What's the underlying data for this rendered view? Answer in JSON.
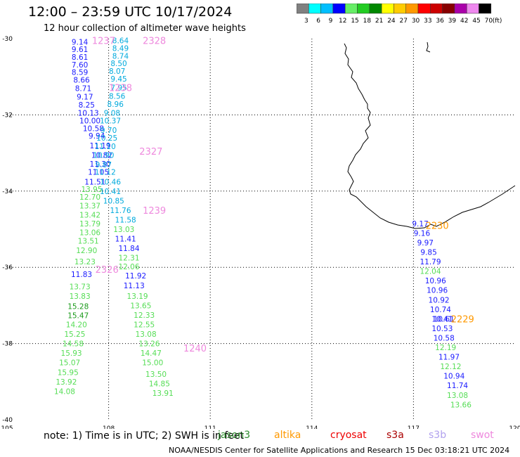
{
  "title": "12:00 – 23:59 UTC 10/17/2024",
  "subtitle": "12 hour collection of altimeter wave heights",
  "colorbar": {
    "labels": [
      "3",
      "6",
      "9",
      "12",
      "15",
      "18",
      "21",
      "24",
      "27",
      "30",
      "33",
      "36",
      "39",
      "42",
      "45",
      "70"
    ],
    "unit": "(ft)",
    "colors": [
      "#808080",
      "#00ffff",
      "#00bfff",
      "#0000ff",
      "#66ee66",
      "#22cc22",
      "#008800",
      "#ffff00",
      "#ffcc00",
      "#ff9900",
      "#ff0000",
      "#cc0000",
      "#880000",
      "#aa00aa",
      "#ee88ee",
      "#000000"
    ]
  },
  "note": "note:  1) Time is in UTC; 2) SWH is in feet",
  "legend": [
    {
      "name": "jason3",
      "color": "#2e8b2e"
    },
    {
      "name": "altika",
      "color": "#ff9900"
    },
    {
      "name": "cryosat",
      "color": "#ee0000"
    },
    {
      "name": "s3a",
      "color": "#aa0000"
    },
    {
      "name": "s3b",
      "color": "#b0a0ee"
    },
    {
      "name": "swot",
      "color": "#ee88dd"
    }
  ],
  "credit": "NOAA/NESDIS Center for Satellite Applications and Research     15 Dec 03:18:21 UTC 2024",
  "chart_data": {
    "type": "scatter",
    "xlim": [
      105,
      120
    ],
    "ylim": [
      -40,
      -30
    ],
    "xticks": [
      "105",
      "108",
      "111",
      "114",
      "117",
      "120"
    ],
    "yticks": [
      "-30",
      "-32",
      "-34",
      "-36",
      "-38",
      "-40"
    ],
    "grid": true,
    "series": [
      {
        "name": "track-a",
        "color": "#1a1aff",
        "points": [
          [
            107.15,
            -30.08,
            "9.14"
          ],
          [
            107.15,
            -30.28,
            "9.61"
          ],
          [
            107.15,
            -30.48,
            "8.61"
          ],
          [
            107.15,
            -30.68,
            "7.60"
          ],
          [
            107.15,
            -30.88,
            "8.59"
          ],
          [
            107.2,
            -31.08,
            "8.66"
          ],
          [
            107.25,
            -31.3,
            "8.71"
          ],
          [
            107.3,
            -31.52,
            "9.17"
          ],
          [
            107.35,
            -31.73,
            "8.25"
          ],
          [
            107.4,
            -31.95,
            "10.13"
          ],
          [
            107.45,
            -32.15,
            "10.00"
          ],
          [
            107.55,
            -32.35,
            "10.58"
          ],
          [
            107.65,
            -32.55,
            "9.94"
          ],
          [
            107.75,
            -32.8,
            "11.19"
          ],
          [
            107.8,
            -33.05,
            "10.82"
          ],
          [
            107.75,
            -33.28,
            "11.30"
          ],
          [
            107.7,
            -33.5,
            "11.05"
          ],
          [
            107.6,
            -33.75,
            "11.51"
          ]
        ]
      },
      {
        "name": "track-a-green",
        "color": "#55dd55",
        "points": [
          [
            107.5,
            -33.95,
            "13.95"
          ],
          [
            107.45,
            -34.15,
            "12.70"
          ],
          [
            107.45,
            -34.38,
            "13.37"
          ],
          [
            107.45,
            -34.62,
            "13.42"
          ],
          [
            107.45,
            -34.85,
            "13.79"
          ],
          [
            107.45,
            -35.08,
            "13.06"
          ],
          [
            107.4,
            -35.3,
            "13.51"
          ],
          [
            107.35,
            -35.55,
            "12.90"
          ],
          [
            107.3,
            -35.85,
            "13.23"
          ]
        ]
      },
      {
        "name": "track-a-low",
        "color": "#1a1aff",
        "points": [
          [
            107.2,
            -36.18,
            "11.83"
          ]
        ]
      },
      {
        "name": "track-a-green2",
        "color": "#55dd55",
        "points": [
          [
            107.15,
            -36.5,
            "13.73"
          ],
          [
            107.15,
            -36.75,
            "13.83"
          ]
        ]
      },
      {
        "name": "track-a-dark",
        "color": "#1a9a1a",
        "points": [
          [
            107.1,
            -37.02,
            "15.28"
          ],
          [
            107.1,
            -37.26,
            "15.47"
          ]
        ]
      },
      {
        "name": "track-a-tail",
        "color": "#55dd55",
        "points": [
          [
            107.05,
            -37.5,
            "14.20"
          ],
          [
            107.0,
            -37.75,
            "15.25"
          ],
          [
            106.95,
            -38.0,
            "14.58"
          ],
          [
            106.9,
            -38.25,
            "15.93"
          ],
          [
            106.85,
            -38.5,
            "15.07"
          ],
          [
            106.8,
            -38.75,
            "15.95"
          ],
          [
            106.75,
            -39.0,
            "13.92"
          ],
          [
            106.7,
            -39.25,
            "14.08"
          ]
        ]
      },
      {
        "name": "track-b",
        "color": "#00aadd",
        "points": [
          [
            108.35,
            -30.05,
            "8.64"
          ],
          [
            108.35,
            -30.25,
            "8.49"
          ],
          [
            108.35,
            -30.45,
            "8.74"
          ],
          [
            108.3,
            -30.65,
            "8.50"
          ],
          [
            108.25,
            -30.85,
            "8.07"
          ],
          [
            108.3,
            -31.05,
            "9.45"
          ],
          [
            108.3,
            -31.28,
            "7.95"
          ],
          [
            108.25,
            -31.5,
            "8.56"
          ],
          [
            108.2,
            -31.72,
            "8.96"
          ],
          [
            108.1,
            -31.95,
            "9.08"
          ],
          [
            108.05,
            -32.15,
            "10.37"
          ],
          [
            108.0,
            -32.4,
            "9.70"
          ],
          [
            107.95,
            -32.6,
            "10.25"
          ],
          [
            107.9,
            -32.82,
            "11.10"
          ],
          [
            107.85,
            -33.05,
            "10.90"
          ],
          [
            107.85,
            -33.3,
            "9.87"
          ],
          [
            107.9,
            -33.5,
            "11.12"
          ],
          [
            108.05,
            -33.75,
            "10.46"
          ],
          [
            108.05,
            -34.0,
            "10.41"
          ],
          [
            108.15,
            -34.25,
            "10.85"
          ],
          [
            108.35,
            -34.5,
            "11.76"
          ],
          [
            108.5,
            -34.75,
            "11.58"
          ]
        ]
      },
      {
        "name": "track-b-green",
        "color": "#55dd55",
        "points": [
          [
            108.45,
            -35.0,
            "13.03"
          ]
        ]
      },
      {
        "name": "track-b-mid",
        "color": "#1a1aff",
        "points": [
          [
            108.5,
            -35.25,
            "11.41"
          ],
          [
            108.6,
            -35.5,
            "11.84"
          ]
        ]
      },
      {
        "name": "track-b-green2",
        "color": "#55dd55",
        "points": [
          [
            108.6,
            -35.75,
            "12.31"
          ],
          [
            108.6,
            -35.98,
            "12.06"
          ]
        ]
      },
      {
        "name": "track-b-blue2",
        "color": "#1a1aff",
        "points": [
          [
            108.8,
            -36.22,
            "11.92"
          ],
          [
            108.75,
            -36.48,
            "11.13"
          ]
        ]
      },
      {
        "name": "track-b-tail",
        "color": "#55dd55",
        "points": [
          [
            108.85,
            -36.75,
            "13.19"
          ],
          [
            108.95,
            -37.0,
            "13.65"
          ],
          [
            109.05,
            -37.25,
            "12.33"
          ],
          [
            109.05,
            -37.5,
            "12.55"
          ],
          [
            109.1,
            -37.75,
            "13.08"
          ],
          [
            109.2,
            -38.0,
            "13.26"
          ],
          [
            109.25,
            -38.25,
            "14.47"
          ],
          [
            109.3,
            -38.5,
            "15.00"
          ],
          [
            109.4,
            -38.8,
            "13.50"
          ],
          [
            109.5,
            -39.05,
            "14.85"
          ],
          [
            109.6,
            -39.3,
            "13.91"
          ]
        ]
      },
      {
        "name": "track-c",
        "color": "#1a1aff",
        "points": [
          [
            117.2,
            -34.85,
            "9.17"
          ],
          [
            117.25,
            -35.1,
            "9.16"
          ],
          [
            117.35,
            -35.35,
            "9.97"
          ],
          [
            117.45,
            -35.6,
            "9.85"
          ],
          [
            117.5,
            -35.85,
            "11.79"
          ]
        ]
      },
      {
        "name": "track-c-green",
        "color": "#55dd55",
        "points": [
          [
            117.5,
            -36.1,
            "12.04"
          ]
        ]
      },
      {
        "name": "track-c-blue",
        "color": "#1a1aff",
        "points": [
          [
            117.65,
            -36.35,
            "10.96"
          ],
          [
            117.7,
            -36.6,
            "10.96"
          ],
          [
            117.75,
            -36.85,
            "10.92"
          ],
          [
            117.8,
            -37.1,
            "10.74"
          ],
          [
            117.9,
            -37.35,
            "10.61"
          ],
          [
            117.85,
            -37.35,
            "10.41"
          ],
          [
            117.85,
            -37.6,
            "10.53"
          ],
          [
            117.9,
            -37.85,
            "10.58"
          ]
        ]
      },
      {
        "name": "track-c-green2",
        "color": "#55dd55",
        "points": [
          [
            117.95,
            -38.1,
            "12.19"
          ]
        ]
      },
      {
        "name": "track-c-blue2",
        "color": "#1a1aff",
        "points": [
          [
            118.05,
            -38.35,
            "11.97"
          ]
        ]
      },
      {
        "name": "track-c-green3",
        "color": "#55dd55",
        "points": [
          [
            118.1,
            -38.6,
            "12.12"
          ]
        ]
      },
      {
        "name": "track-c-blue3",
        "color": "#1a1aff",
        "points": [
          [
            118.2,
            -38.85,
            "10.94"
          ],
          [
            118.3,
            -39.1,
            "11.74"
          ]
        ]
      },
      {
        "name": "track-c-tail",
        "color": "#55dd55",
        "points": [
          [
            118.3,
            -39.35,
            "13.08"
          ],
          [
            118.4,
            -39.6,
            "13.66"
          ]
        ]
      }
    ],
    "time_labels": [
      {
        "x": 107.85,
        "y": -30.05,
        "text": "1237",
        "color": "#ee88dd"
      },
      {
        "x": 109.35,
        "y": -30.05,
        "text": "2328",
        "color": "#ee88dd"
      },
      {
        "x": 108.35,
        "y": -31.28,
        "text": "1238",
        "color": "#ee88dd"
      },
      {
        "x": 109.25,
        "y": -32.95,
        "text": "2327",
        "color": "#ee88dd"
      },
      {
        "x": 109.35,
        "y": -34.5,
        "text": "1239",
        "color": "#ee88dd"
      },
      {
        "x": 107.95,
        "y": -36.05,
        "text": "2326",
        "color": "#ee88dd"
      },
      {
        "x": 110.55,
        "y": -38.12,
        "text": "1240",
        "color": "#ee88dd"
      },
      {
        "x": 117.7,
        "y": -34.9,
        "text": "2230",
        "color": "#ff9900"
      },
      {
        "x": 118.45,
        "y": -37.35,
        "text": "2229",
        "color": "#ff9900"
      }
    ]
  }
}
